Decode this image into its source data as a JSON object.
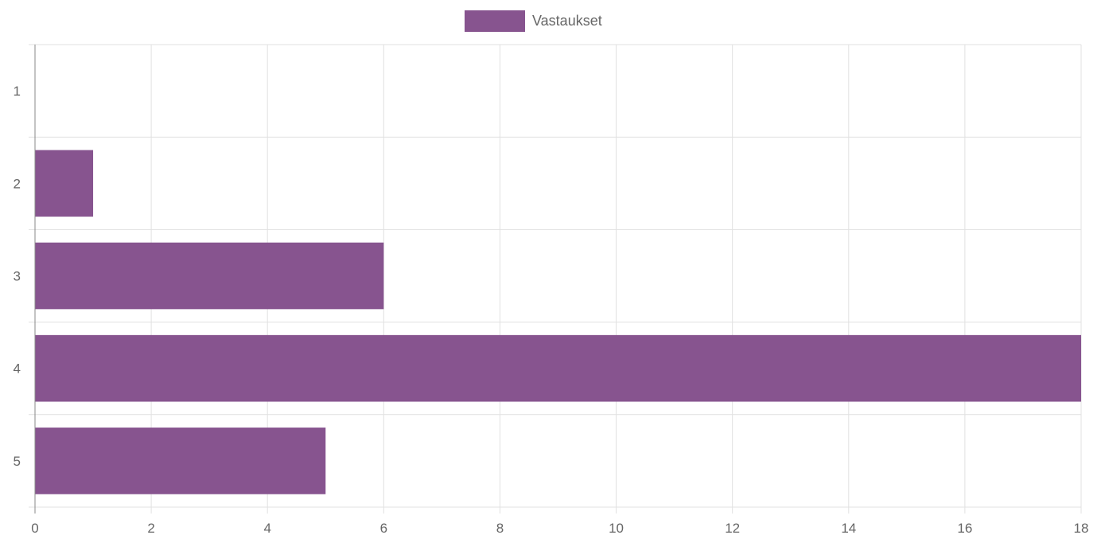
{
  "chart_data": {
    "type": "bar",
    "orientation": "horizontal",
    "categories": [
      "1",
      "2",
      "3",
      "4",
      "5"
    ],
    "series": [
      {
        "name": "Vastaukset",
        "values": [
          0,
          1,
          6,
          18,
          5
        ]
      }
    ],
    "xlim": [
      0,
      18
    ],
    "x_ticks": [
      "0",
      "2",
      "4",
      "6",
      "8",
      "10",
      "12",
      "14",
      "16",
      "18"
    ],
    "grid": true,
    "legend": "top-center",
    "colors": {
      "bar": "#87548f",
      "grid": "#e1e1e1",
      "axis": "#888888",
      "text": "#666666"
    }
  }
}
